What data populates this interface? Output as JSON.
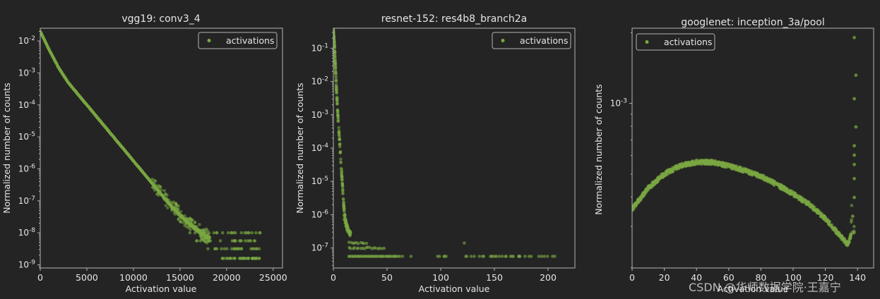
{
  "colors": {
    "background": "#242424",
    "axes": "#b4b4b4",
    "text": "#e6e6e6",
    "marker": "#7aa842"
  },
  "watermark": "CSDN @华师数据学院·王嘉宁",
  "chart_data": [
    {
      "type": "scatter",
      "title": "vgg19: conv3_4",
      "xlabel": "Activation value",
      "ylabel": "Normalized number of counts",
      "xlim": [
        0,
        26000
      ],
      "ylim_log10": [
        -9.1,
        -1.6
      ],
      "yscale": "log",
      "xticks": [
        0,
        5000,
        10000,
        15000,
        20000,
        25000
      ],
      "xtick_labels": [
        "0",
        "5000",
        "10000",
        "15000",
        "20000",
        "25000"
      ],
      "yticks_log10": [
        -2,
        -3,
        -4,
        -5,
        -6,
        -7,
        -8,
        -9
      ],
      "ytick_labels": [
        "10-2",
        "10-3",
        "10-4",
        "10-5",
        "10-6",
        "10-7",
        "10-8",
        "10-9"
      ],
      "legend": {
        "label": "activations",
        "position": "top-right"
      },
      "curve_log10": [
        [
          0,
          -1.7
        ],
        [
          500,
          -2.0
        ],
        [
          1000,
          -2.3
        ],
        [
          2000,
          -2.85
        ],
        [
          3000,
          -3.3
        ],
        [
          4000,
          -3.65
        ],
        [
          5000,
          -4.0
        ],
        [
          6000,
          -4.35
        ],
        [
          7000,
          -4.7
        ],
        [
          8000,
          -5.05
        ],
        [
          9000,
          -5.4
        ],
        [
          10000,
          -5.75
        ],
        [
          11000,
          -6.1
        ],
        [
          12000,
          -6.45
        ],
        [
          13000,
          -6.8
        ],
        [
          14000,
          -7.15
        ],
        [
          15000,
          -7.45
        ],
        [
          16000,
          -7.7
        ],
        [
          17000,
          -7.95
        ],
        [
          18000,
          -8.15
        ]
      ],
      "tail_rows_log10": [
        -8.0,
        -8.25,
        -8.5,
        -8.8
      ],
      "tail_x_range": [
        15500,
        23700
      ]
    },
    {
      "type": "scatter",
      "title": "resnet-152: res4b8_branch2a",
      "xlabel": "Activation value",
      "ylabel": "Normalized number of counts",
      "xlim": [
        0,
        225
      ],
      "ylim_log10": [
        -7.6,
        -0.4
      ],
      "yscale": "log",
      "xticks": [
        0,
        50,
        100,
        150,
        200
      ],
      "xtick_labels": [
        "0",
        "50",
        "100",
        "150",
        "200"
      ],
      "yticks_log10": [
        -1,
        -2,
        -3,
        -4,
        -5,
        -6,
        -7
      ],
      "ytick_labels": [
        "10-1",
        "10-2",
        "10-3",
        "10-4",
        "10-5",
        "10-6",
        "10-7"
      ],
      "legend": {
        "label": "activations",
        "position": "top-right"
      },
      "curve_log10": [
        [
          0,
          -0.5
        ],
        [
          1,
          -0.9
        ],
        [
          2,
          -1.6
        ],
        [
          3,
          -2.3
        ],
        [
          4,
          -2.9
        ],
        [
          5,
          -3.4
        ],
        [
          6,
          -3.9
        ],
        [
          7,
          -4.4
        ],
        [
          8,
          -4.9
        ],
        [
          9,
          -5.4
        ],
        [
          10,
          -5.9
        ],
        [
          11,
          -6.1
        ],
        [
          12,
          -6.3
        ],
        [
          14,
          -6.5
        ],
        [
          16,
          -6.6
        ]
      ],
      "floor_log10": -7.25,
      "floor_x_range": [
        14,
        208
      ],
      "upper_rows_log10": [
        -7.0,
        -6.85
      ]
    },
    {
      "type": "scatter",
      "title": "googlenet: inception_3a/pool",
      "xlabel": "Activation value",
      "ylabel": "Normalized number of counts",
      "xlim": [
        0,
        150
      ],
      "ylim_log10": [
        -3.7,
        -2.68
      ],
      "yscale": "log",
      "xticks": [
        0,
        20,
        40,
        60,
        80,
        100,
        120,
        140
      ],
      "xtick_labels": [
        "0",
        "20",
        "40",
        "60",
        "80",
        "100",
        "120",
        "140"
      ],
      "yticks_log10": [
        -3
      ],
      "ytick_labels": [
        "10-3"
      ],
      "legend": {
        "label": "activations",
        "position": "top-left"
      },
      "curve_log10": [
        [
          0,
          -3.45
        ],
        [
          10,
          -3.36
        ],
        [
          20,
          -3.3
        ],
        [
          30,
          -3.265
        ],
        [
          40,
          -3.25
        ],
        [
          50,
          -3.25
        ],
        [
          60,
          -3.265
        ],
        [
          70,
          -3.285
        ],
        [
          80,
          -3.31
        ],
        [
          90,
          -3.345
        ],
        [
          100,
          -3.385
        ],
        [
          110,
          -3.43
        ],
        [
          120,
          -3.49
        ],
        [
          130,
          -3.57
        ],
        [
          134,
          -3.6
        ],
        [
          136,
          -3.56
        ]
      ],
      "spike_points": [
        [
          137,
          -3.48
        ],
        [
          138,
          -3.4
        ],
        [
          138,
          -3.32
        ],
        [
          138,
          -3.26
        ],
        [
          138,
          -3.22
        ],
        [
          138,
          -3.18
        ],
        [
          139,
          -3.1
        ],
        [
          138,
          -2.98
        ],
        [
          139,
          -2.88
        ],
        [
          138,
          -2.72
        ]
      ]
    }
  ]
}
